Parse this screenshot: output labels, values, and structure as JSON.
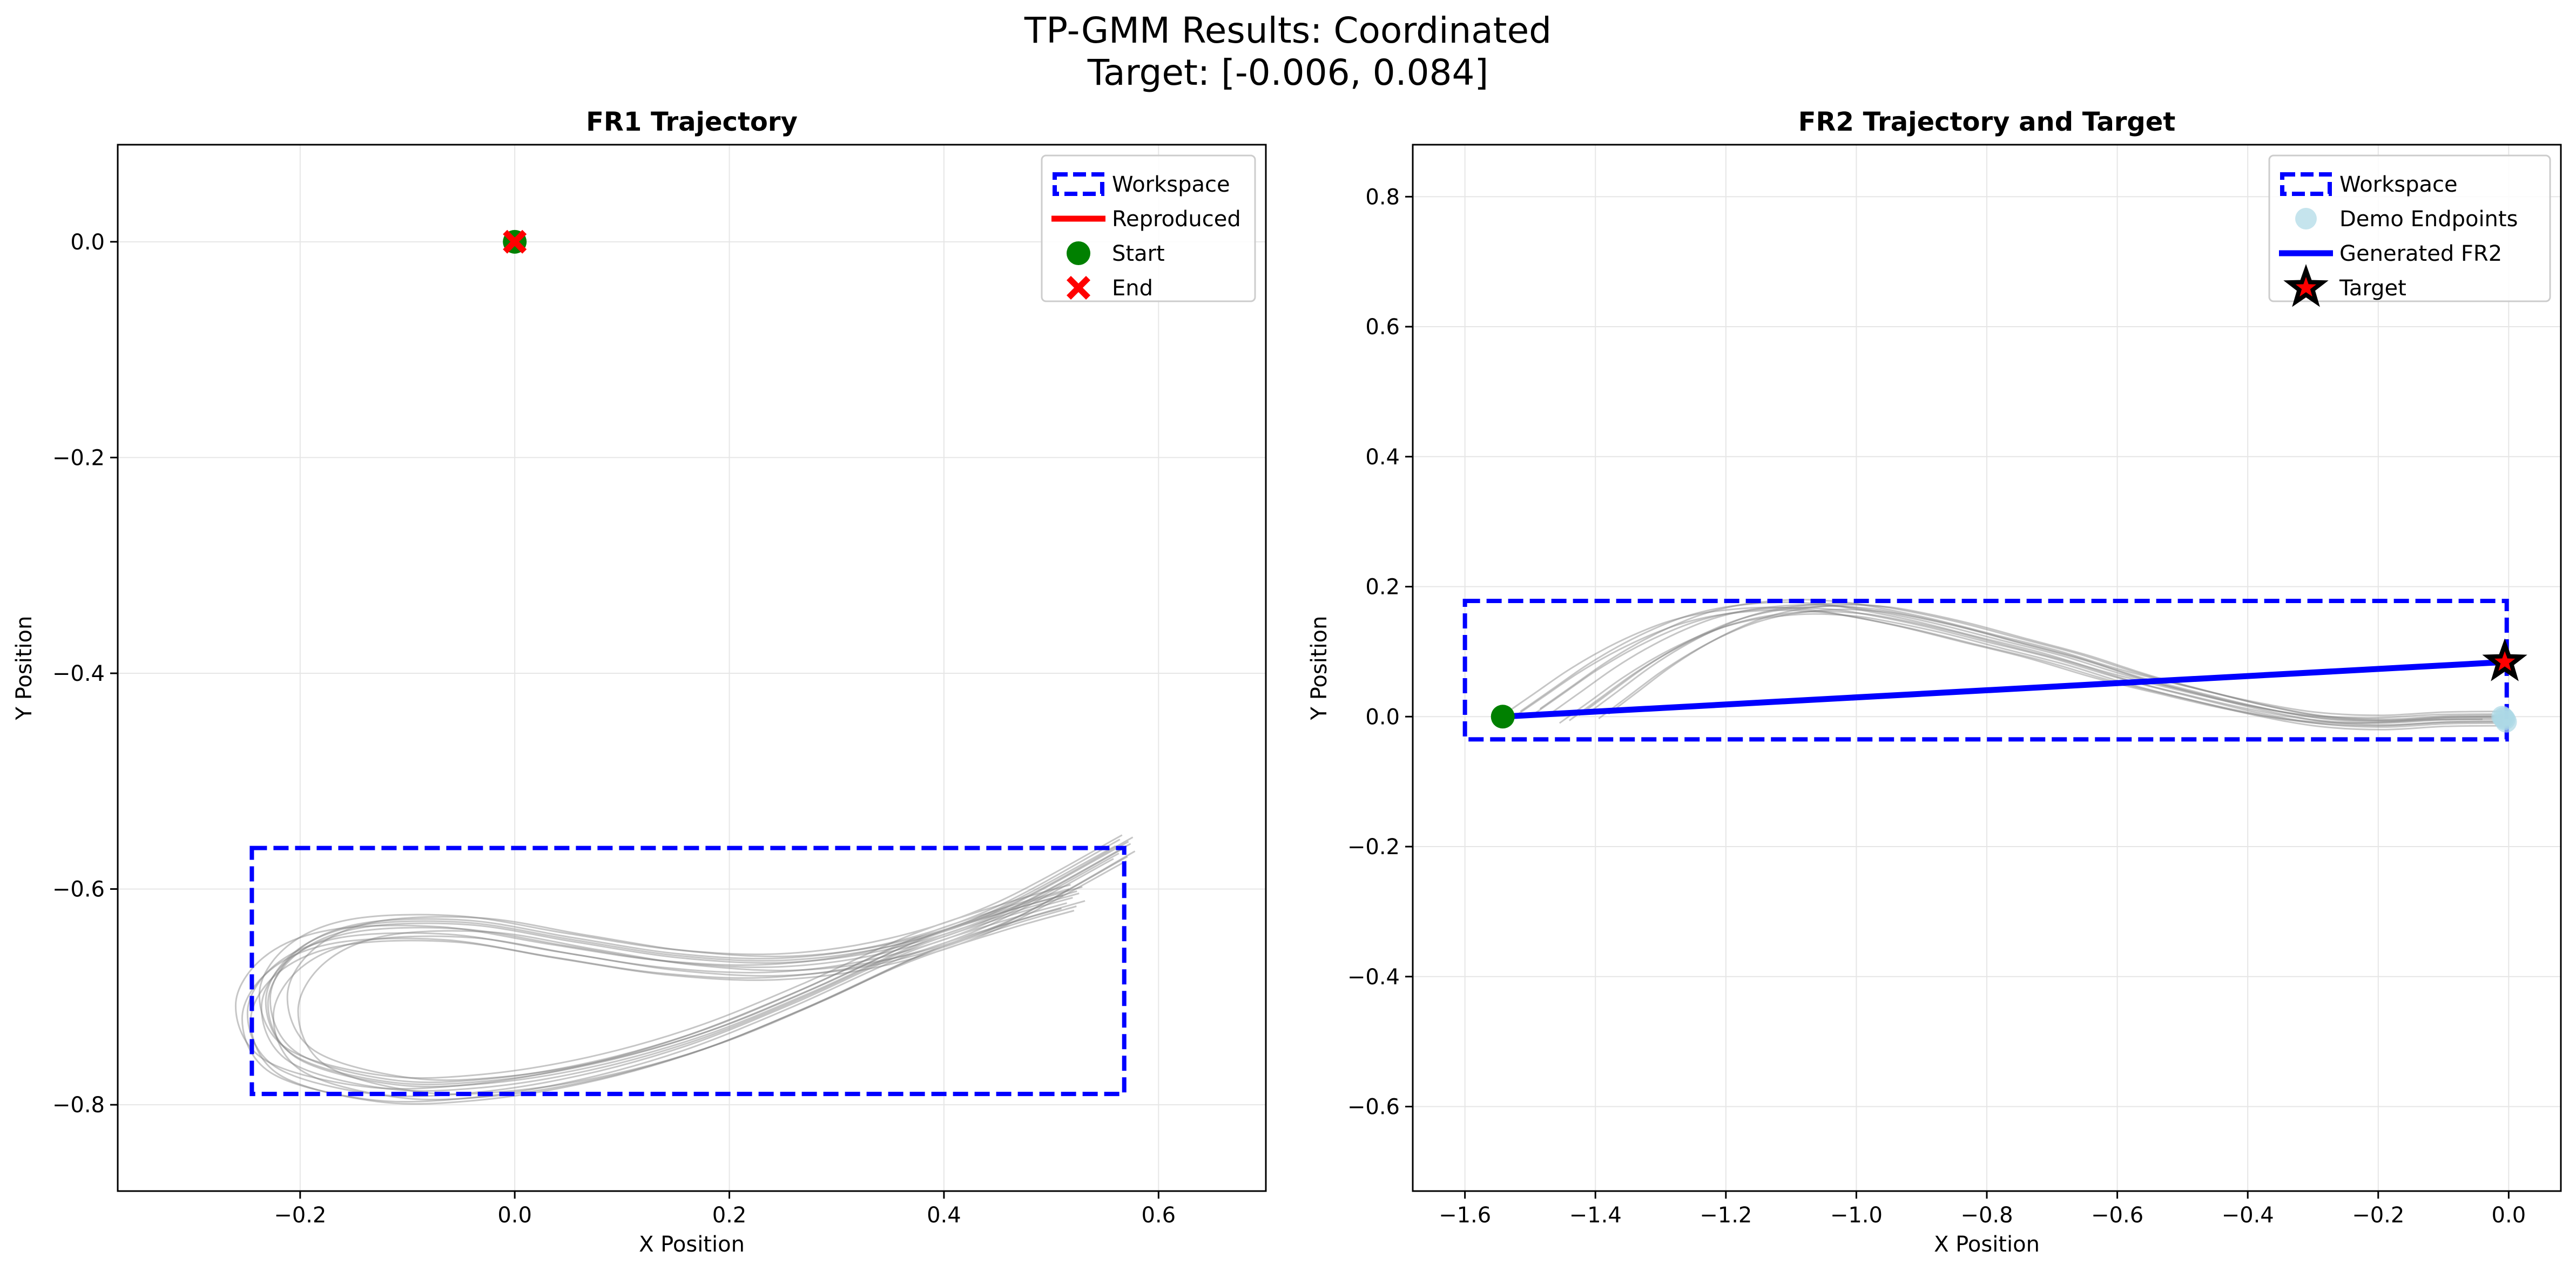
{
  "figure": {
    "title_line1": "TP-GMM Results: Coordinated",
    "title_line2": "Target: [-0.006, 0.084]"
  },
  "colors": {
    "workspace": "#0000ff",
    "reproduced": "#ff0000",
    "start": "#008000",
    "end": "#ff0000",
    "demo": "#808080",
    "demo_endpoints": "#add8e6",
    "generated": "#0000ff",
    "target_fill": "#ff0000",
    "target_edge": "#000000",
    "grid": "#e6e6e6"
  },
  "chart_data": [
    {
      "type": "line",
      "title": "FR1 Trajectory",
      "xlabel": "X Position",
      "ylabel": "Y Position",
      "xlim": [
        -0.37,
        0.7
      ],
      "ylim": [
        -0.88,
        0.09
      ],
      "xticks": [
        -0.2,
        0.0,
        0.2,
        0.4,
        0.6
      ],
      "xtick_labels": [
        "−0.2",
        "0.0",
        "0.2",
        "0.4",
        "0.6"
      ],
      "yticks": [
        0.0,
        -0.2,
        -0.4,
        -0.6,
        -0.8
      ],
      "ytick_labels": [
        "0.0",
        "−0.2",
        "−0.4",
        "−0.6",
        "−0.8"
      ],
      "grid": true,
      "legend_position": "top-right",
      "legend": [
        "Workspace",
        "Reproduced",
        "Start",
        "End"
      ],
      "workspace": {
        "x0": -0.245,
        "y0": -0.79,
        "x1": 0.568,
        "y1": -0.562
      },
      "start": {
        "x": 0.0,
        "y": 0.0
      },
      "end": {
        "x": 0.0,
        "y": 0.0
      },
      "demo_base": {
        "x": [
          0.568,
          0.45,
          0.35,
          0.25,
          0.15,
          0.05,
          -0.05,
          -0.15,
          -0.21,
          -0.236,
          -0.21,
          -0.12,
          -0.03,
          0.07,
          0.17,
          0.27,
          0.37,
          0.46,
          0.52
        ],
        "y": [
          -0.562,
          -0.625,
          -0.658,
          -0.672,
          -0.668,
          -0.653,
          -0.637,
          -0.64,
          -0.665,
          -0.71,
          -0.76,
          -0.785,
          -0.784,
          -0.768,
          -0.74,
          -0.7,
          -0.655,
          -0.625,
          -0.608
        ]
      },
      "demo_variations": [
        {
          "dx": 0.0,
          "dy": 0.0,
          "s": 1.0
        },
        {
          "dx": 0.004,
          "dy": 0.006,
          "s": 1.0
        },
        {
          "dx": -0.005,
          "dy": -0.005,
          "s": 1.01
        },
        {
          "dx": 0.008,
          "dy": 0.01,
          "s": 0.98
        },
        {
          "dx": -0.008,
          "dy": 0.002,
          "s": 1.02
        },
        {
          "dx": 0.003,
          "dy": -0.008,
          "s": 0.99
        },
        {
          "dx": -0.002,
          "dy": 0.012,
          "s": 1.0
        },
        {
          "dx": 0.01,
          "dy": -0.003,
          "s": 0.97
        },
        {
          "dx": -0.01,
          "dy": -0.01,
          "s": 1.01
        },
        {
          "dx": 0.006,
          "dy": 0.004,
          "s": 1.0
        },
        {
          "dx": -0.004,
          "dy": 0.008,
          "s": 0.985
        },
        {
          "dx": 0.002,
          "dy": -0.012,
          "s": 1.015
        }
      ]
    },
    {
      "type": "line",
      "title": "FR2 Trajectory and Target",
      "xlabel": "X Position",
      "ylabel": "Y Position",
      "xlim": [
        -1.68,
        0.08
      ],
      "ylim": [
        -0.73,
        0.88
      ],
      "xticks": [
        -1.6,
        -1.4,
        -1.2,
        -1.0,
        -0.8,
        -0.6,
        -0.4,
        -0.2,
        0.0
      ],
      "xtick_labels": [
        "−1.6",
        "−1.4",
        "−1.2",
        "−1.0",
        "−0.8",
        "−0.6",
        "−0.4",
        "−0.2",
        "0.0"
      ],
      "yticks": [
        0.8,
        0.6,
        0.4,
        0.2,
        0.0,
        -0.2,
        -0.4,
        -0.6
      ],
      "ytick_labels": [
        "0.8",
        "0.6",
        "0.4",
        "0.2",
        "0.0",
        "−0.2",
        "−0.4",
        "−0.6"
      ],
      "grid": true,
      "legend_position": "top-right",
      "legend": [
        "Workspace",
        "Demo Endpoints",
        "Generated FR2",
        "Target"
      ],
      "workspace": {
        "x0": -1.6,
        "y0": -0.035,
        "x1": -0.003,
        "y1": 0.178
      },
      "start": {
        "x": -1.542,
        "y": 0.0
      },
      "target": {
        "x": -0.006,
        "y": 0.084
      },
      "generated": {
        "x": [
          -1.542,
          -0.006
        ],
        "y": [
          0.0,
          0.084
        ]
      },
      "demo_endpoints": [
        {
          "x": -0.006,
          "y": -0.004
        },
        {
          "x": -0.01,
          "y": 0.0
        },
        {
          "x": -0.004,
          "y": -0.008
        },
        {
          "x": -0.008,
          "y": -0.002
        }
      ],
      "demo_base": {
        "x": [
          -1.5,
          -1.45,
          -1.4,
          -1.35,
          -1.3,
          -1.25,
          -1.2,
          -1.15,
          -1.1,
          -1.05,
          -1.0,
          -0.9,
          -0.8,
          -0.7,
          -0.6,
          -0.5,
          -0.4,
          -0.3,
          -0.2,
          -0.1,
          -0.01
        ],
        "y": [
          0.0,
          0.035,
          0.07,
          0.1,
          0.125,
          0.145,
          0.158,
          0.165,
          0.168,
          0.166,
          0.16,
          0.14,
          0.115,
          0.09,
          0.06,
          0.035,
          0.012,
          -0.005,
          -0.01,
          -0.005,
          -0.004
        ]
      },
      "demo_variations": [
        {
          "dx": 0.0,
          "dy": 0.0,
          "s": 1.0
        },
        {
          "dx": 0.03,
          "dy": 0.004,
          "s": 0.98
        },
        {
          "dx": -0.03,
          "dy": -0.004,
          "s": 1.02
        },
        {
          "dx": 0.06,
          "dy": -0.006,
          "s": 0.96
        },
        {
          "dx": 0.09,
          "dy": 0.006,
          "s": 0.94
        },
        {
          "dx": -0.015,
          "dy": 0.008,
          "s": 1.0
        },
        {
          "dx": 0.045,
          "dy": -0.01,
          "s": 0.97
        },
        {
          "dx": 0.075,
          "dy": 0.002,
          "s": 0.95
        },
        {
          "dx": -0.045,
          "dy": 0.0,
          "s": 1.01
        },
        {
          "dx": 0.015,
          "dy": 0.012,
          "s": 0.99
        },
        {
          "dx": 0.105,
          "dy": -0.003,
          "s": 0.93
        },
        {
          "dx": 0.12,
          "dy": 0.004,
          "s": 0.92
        }
      ]
    }
  ]
}
